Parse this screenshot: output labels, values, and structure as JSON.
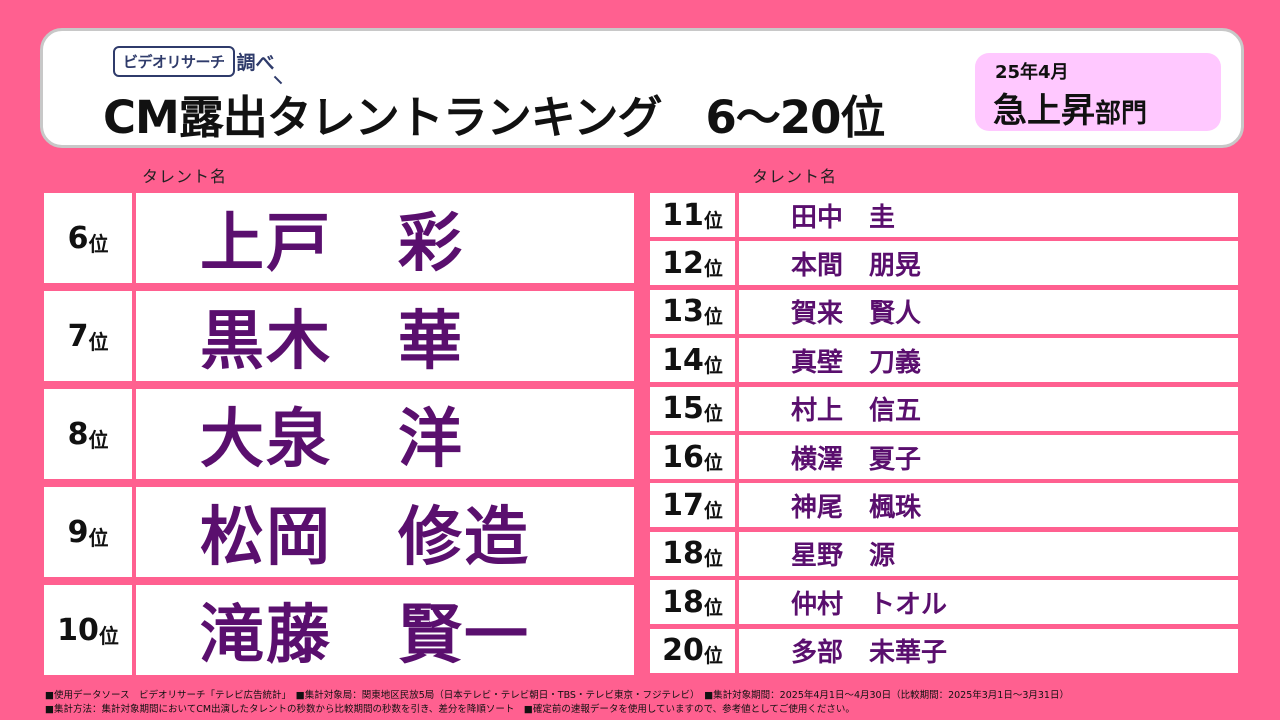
{
  "header": {
    "logo_text": "ビデオリサーチ",
    "logo_mark": "調べ",
    "title": "CM露出タレントランキング　6～20位",
    "badge": {
      "date": "25年4月",
      "category": "急上昇",
      "suffix": "部門"
    }
  },
  "column_label": "タレント名",
  "rank_unit": "位",
  "top_rows": [
    {
      "rank": "6",
      "name": "上戸　彩"
    },
    {
      "rank": "7",
      "name": "黒木　華"
    },
    {
      "rank": "8",
      "name": "大泉　洋"
    },
    {
      "rank": "9",
      "name": "松岡　修造"
    },
    {
      "rank": "10",
      "name": "滝藤　賢一"
    }
  ],
  "bottom_rows": [
    {
      "rank": "11",
      "name": "田中　圭"
    },
    {
      "rank": "12",
      "name": "本間　朋晃"
    },
    {
      "rank": "13",
      "name": "賀来　賢人"
    },
    {
      "rank": "14",
      "name": "真壁　刀義"
    },
    {
      "rank": "15",
      "name": "村上　信五"
    },
    {
      "rank": "16",
      "name": "横澤　夏子"
    },
    {
      "rank": "17",
      "name": "神尾　楓珠"
    },
    {
      "rank": "18",
      "name": "星野　源"
    },
    {
      "rank": "18",
      "name": "仲村　トオル"
    },
    {
      "rank": "20",
      "name": "多部　未華子"
    }
  ],
  "footer": {
    "line1": "■使用データソース　ビデオリサーチ「テレビ広告統計」　■集計対象局：関東地区民放5局（日本テレビ・テレビ朝日・TBS・テレビ東京・フジテレビ）　■集計対象期間：2025年4月1日～4月30日（比較期間：2025年3月1日～3月31日）",
    "line2": "■集計方法：集計対象期間においてCM出演したタレントの秒数から比較期間の秒数を引き、差分を降順ソート　■確定前の速報データを使用していますので、参考値としてご使用ください。"
  }
}
